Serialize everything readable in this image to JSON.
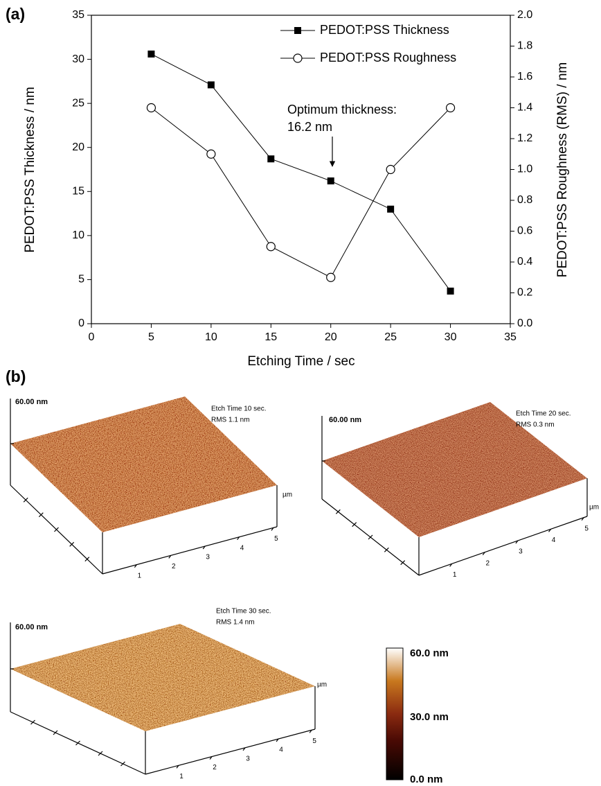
{
  "panel_a_label": "(a)",
  "panel_b_label": "(b)",
  "chart_data": {
    "type": "line",
    "x": [
      5,
      10,
      15,
      20,
      25,
      30
    ],
    "series": [
      {
        "name": "PEDOT:PSS Thickness",
        "color": "#000000",
        "marker": "square",
        "values": [
          30.6,
          27.1,
          18.7,
          16.2,
          13.0,
          3.7
        ]
      },
      {
        "name": "PEDOT:PSS Roughness",
        "color": "#000000",
        "marker": "circle-open",
        "axis": "y2",
        "values": [
          1.4,
          1.1,
          0.5,
          0.3,
          1.0,
          1.4
        ]
      }
    ],
    "xlabel": "Etching Time / sec",
    "ylabel": "PEDOT:PSS Thickness / nm",
    "y2label": "PEDOT:PSS Roughness (RMS) / nm",
    "xlim": [
      0,
      35
    ],
    "xticks": [
      0,
      5,
      10,
      15,
      20,
      25,
      30,
      35
    ],
    "ylim": [
      0,
      35
    ],
    "yticks": [
      0,
      5,
      10,
      15,
      20,
      25,
      30,
      35
    ],
    "y2lim": [
      0,
      2
    ],
    "y2ticks": [
      {
        "value": 0,
        "label": "0.0"
      },
      0.2,
      0.4,
      0.6,
      0.8,
      {
        "value": 1,
        "label": "1.0"
      },
      1.2,
      1.4,
      1.6,
      1.8,
      {
        "value": 2,
        "label": "2.0"
      }
    ],
    "legend": "upper right",
    "grid": false,
    "annotation": [
      "Optimum thickness:",
      "16.2 nm"
    ]
  },
  "afm_images": [
    {
      "z_scale": "60.00 nm",
      "caption": "Etch Time 10 sec.",
      "rms": "RMS 1.1 nm",
      "unit": "µm",
      "ticks": [
        1,
        2,
        3,
        4,
        5
      ]
    },
    {
      "z_scale": "60.00 nm",
      "caption": "Etch Time 20 sec.",
      "rms": "RMS 0.3 nm",
      "unit": "µm",
      "ticks": [
        1,
        2,
        3,
        4,
        5
      ]
    },
    {
      "z_scale": "60.00 nm",
      "caption": "Etch Time  30 sec.",
      "rms": "RMS 1.4 nm",
      "unit": "µm",
      "ticks": [
        1,
        2,
        3,
        4,
        5
      ]
    }
  ],
  "color_scale": [
    "60.0 nm",
    "30.0 nm",
    "0.0 nm"
  ]
}
